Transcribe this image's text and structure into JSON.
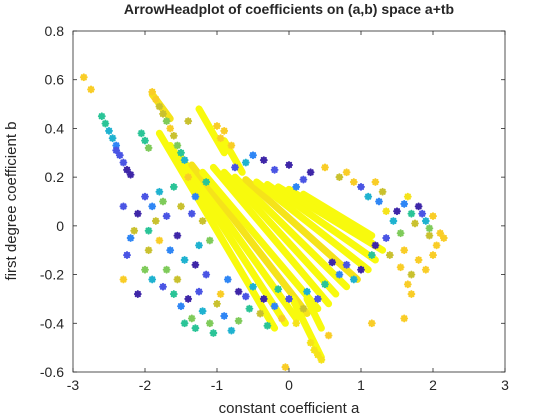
{
  "chart_data": {
    "type": "scatter",
    "title": "ArrowHeadplot of coefficients on (a,b) space a+tb",
    "xlabel": "constant coefficient a",
    "ylabel": "first degree coefficient b",
    "xlim": [
      -3,
      3
    ],
    "ylim": [
      -0.6,
      0.8
    ],
    "xticks": [
      -3,
      -2,
      -1,
      0,
      1,
      2,
      3
    ],
    "yticks": [
      -0.6,
      -0.4,
      -0.2,
      0,
      0.2,
      0.4,
      0.6,
      0.8
    ],
    "xtick_labels": [
      "-3",
      "-2",
      "-1",
      "0",
      "1",
      "2",
      "3"
    ],
    "ytick_labels": [
      "-0.6",
      "-0.4",
      "-0.2",
      "0",
      "0.2",
      "0.4",
      "0.6",
      "0.8"
    ],
    "grid": false,
    "marker": "star",
    "colormap": [
      "#3e26a8",
      "#4a55e4",
      "#2f86f5",
      "#1fb2d0",
      "#2ac497",
      "#7fcb5a",
      "#c9c12f",
      "#f9cd27",
      "#f5e31a",
      "#f8fa0d"
    ],
    "points": [
      {
        "x": -2.85,
        "y": 0.61,
        "c": 7
      },
      {
        "x": -2.75,
        "y": 0.56,
        "c": 7
      },
      {
        "x": -1.9,
        "y": 0.55,
        "c": 7
      },
      {
        "x": -1.85,
        "y": 0.52,
        "c": 7
      },
      {
        "x": -1.8,
        "y": 0.49,
        "c": 6
      },
      {
        "x": -1.75,
        "y": 0.46,
        "c": 6
      },
      {
        "x": -1.7,
        "y": 0.43,
        "c": 5
      },
      {
        "x": -2.6,
        "y": 0.45,
        "c": 4
      },
      {
        "x": -2.55,
        "y": 0.42,
        "c": 4
      },
      {
        "x": -2.5,
        "y": 0.39,
        "c": 3
      },
      {
        "x": -2.45,
        "y": 0.36,
        "c": 3
      },
      {
        "x": -2.4,
        "y": 0.33,
        "c": 2
      },
      {
        "x": -2.4,
        "y": 0.31,
        "c": 1
      },
      {
        "x": -2.35,
        "y": 0.29,
        "c": 1
      },
      {
        "x": -2.3,
        "y": 0.26,
        "c": 1
      },
      {
        "x": -2.25,
        "y": 0.23,
        "c": 0
      },
      {
        "x": -2.2,
        "y": 0.21,
        "c": 0
      },
      {
        "x": -2.05,
        "y": 0.38,
        "c": 4
      },
      {
        "x": -2.0,
        "y": 0.35,
        "c": 4
      },
      {
        "x": -1.95,
        "y": 0.32,
        "c": 5
      },
      {
        "x": -1.65,
        "y": 0.4,
        "c": 7
      },
      {
        "x": -1.6,
        "y": 0.37,
        "c": 6
      },
      {
        "x": -1.55,
        "y": 0.33,
        "c": 5
      },
      {
        "x": -1.5,
        "y": 0.3,
        "c": 4
      },
      {
        "x": -1.45,
        "y": 0.27,
        "c": 3
      },
      {
        "x": -1.4,
        "y": 0.43,
        "c": 6
      },
      {
        "x": -1.0,
        "y": 0.41,
        "c": 7
      },
      {
        "x": -0.95,
        "y": 0.36,
        "c": 7
      },
      {
        "x": -0.9,
        "y": 0.39,
        "c": 7
      },
      {
        "x": -0.8,
        "y": 0.33,
        "c": 7
      },
      {
        "x": -2.1,
        "y": 0.05,
        "c": 0
      },
      {
        "x": -2.0,
        "y": 0.12,
        "c": 1
      },
      {
        "x": -1.9,
        "y": 0.08,
        "c": 2
      },
      {
        "x": -1.8,
        "y": 0.14,
        "c": 3
      },
      {
        "x": -1.95,
        "y": -0.02,
        "c": 4
      },
      {
        "x": -1.85,
        "y": 0.02,
        "c": 6
      },
      {
        "x": -1.8,
        "y": -0.06,
        "c": 7
      },
      {
        "x": -1.75,
        "y": 0.1,
        "c": 5
      },
      {
        "x": -1.7,
        "y": 0.04,
        "c": 1
      },
      {
        "x": -1.65,
        "y": -0.1,
        "c": 2
      },
      {
        "x": -1.6,
        "y": 0.16,
        "c": 4
      },
      {
        "x": -1.55,
        "y": -0.04,
        "c": 0
      },
      {
        "x": -1.5,
        "y": 0.08,
        "c": 6
      },
      {
        "x": -1.45,
        "y": -0.14,
        "c": 3
      },
      {
        "x": -1.4,
        "y": 0.2,
        "c": 7
      },
      {
        "x": -2.2,
        "y": -0.05,
        "c": 2
      },
      {
        "x": -2.3,
        "y": 0.08,
        "c": 1
      },
      {
        "x": -2.15,
        "y": -0.02,
        "c": 6
      },
      {
        "x": -2.0,
        "y": -0.18,
        "c": 5
      },
      {
        "x": -1.9,
        "y": -0.22,
        "c": 3
      },
      {
        "x": -1.75,
        "y": -0.25,
        "c": 1
      },
      {
        "x": -1.6,
        "y": -0.28,
        "c": 4
      },
      {
        "x": -1.5,
        "y": -0.33,
        "c": 2
      },
      {
        "x": -1.4,
        "y": -0.3,
        "c": 0
      },
      {
        "x": -1.35,
        "y": -0.38,
        "c": 5
      },
      {
        "x": -1.3,
        "y": -0.42,
        "c": 4
      },
      {
        "x": -1.25,
        "y": -0.27,
        "c": 1
      },
      {
        "x": -1.2,
        "y": -0.35,
        "c": 3
      },
      {
        "x": -1.1,
        "y": -0.4,
        "c": 5
      },
      {
        "x": -1.05,
        "y": -0.44,
        "c": 4
      },
      {
        "x": -1.0,
        "y": -0.32,
        "c": 6
      },
      {
        "x": -0.9,
        "y": -0.37,
        "c": 2
      },
      {
        "x": -0.8,
        "y": -0.43,
        "c": 3
      },
      {
        "x": -0.7,
        "y": -0.39,
        "c": 5
      },
      {
        "x": -0.6,
        "y": -0.29,
        "c": 1
      },
      {
        "x": -0.55,
        "y": -0.34,
        "c": 4
      },
      {
        "x": -0.4,
        "y": -0.36,
        "c": 6
      },
      {
        "x": -0.3,
        "y": -0.41,
        "c": 4
      },
      {
        "x": -0.2,
        "y": -0.33,
        "c": 2
      },
      {
        "x": -0.1,
        "y": -0.38,
        "c": 7
      },
      {
        "x": 0.1,
        "y": -0.4,
        "c": 8
      },
      {
        "x": 0.2,
        "y": -0.34,
        "c": 6
      },
      {
        "x": -0.05,
        "y": -0.58,
        "c": 7
      },
      {
        "x": 0.3,
        "y": -0.48,
        "c": 8
      },
      {
        "x": 0.35,
        "y": -0.51,
        "c": 8
      },
      {
        "x": 0.4,
        "y": -0.53,
        "c": 8
      },
      {
        "x": 0.45,
        "y": -0.55,
        "c": 8
      },
      {
        "x": 0.55,
        "y": -0.45,
        "c": 7
      },
      {
        "x": 1.15,
        "y": -0.4,
        "c": 7
      },
      {
        "x": 1.6,
        "y": -0.38,
        "c": 7
      },
      {
        "x": 1.7,
        "y": -0.28,
        "c": 7
      },
      {
        "x": 1.55,
        "y": -0.17,
        "c": 7
      },
      {
        "x": 1.7,
        "y": -0.2,
        "c": 6
      },
      {
        "x": 1.65,
        "y": -0.24,
        "c": 7
      },
      {
        "x": 1.8,
        "y": -0.14,
        "c": 7
      },
      {
        "x": 1.9,
        "y": -0.18,
        "c": 7
      },
      {
        "x": 2.0,
        "y": -0.12,
        "c": 7
      },
      {
        "x": 2.05,
        "y": -0.08,
        "c": 7
      },
      {
        "x": 1.95,
        "y": -0.04,
        "c": 6
      },
      {
        "x": 2.1,
        "y": -0.03,
        "c": 7
      },
      {
        "x": 2.15,
        "y": -0.05,
        "c": 7
      },
      {
        "x": 1.85,
        "y": 0.05,
        "c": 1
      },
      {
        "x": 1.9,
        "y": 0.02,
        "c": 3
      },
      {
        "x": 1.8,
        "y": 0.08,
        "c": 0
      },
      {
        "x": 1.95,
        "y": -0.01,
        "c": 5
      },
      {
        "x": 2.0,
        "y": 0.04,
        "c": 7
      },
      {
        "x": 1.75,
        "y": 0.01,
        "c": 6
      },
      {
        "x": 1.7,
        "y": 0.05,
        "c": 4
      },
      {
        "x": 1.6,
        "y": 0.09,
        "c": 2
      },
      {
        "x": 1.5,
        "y": 0.06,
        "c": 0
      },
      {
        "x": 1.45,
        "y": 0.02,
        "c": 3
      },
      {
        "x": 1.55,
        "y": -0.03,
        "c": 5
      },
      {
        "x": 1.35,
        "y": -0.05,
        "c": 1
      },
      {
        "x": 1.25,
        "y": 0.1,
        "c": 2
      },
      {
        "x": 1.3,
        "y": 0.14,
        "c": 6
      },
      {
        "x": 1.2,
        "y": -0.08,
        "c": 0
      },
      {
        "x": 1.15,
        "y": -0.12,
        "c": 4
      },
      {
        "x": 1.1,
        "y": 0.12,
        "c": 3
      },
      {
        "x": 1.0,
        "y": 0.16,
        "c": 1
      },
      {
        "x": 0.9,
        "y": 0.18,
        "c": 7
      },
      {
        "x": 0.7,
        "y": 0.2,
        "c": 6
      },
      {
        "x": 0.8,
        "y": 0.22,
        "c": 7
      },
      {
        "x": 1.2,
        "y": 0.18,
        "c": 7
      },
      {
        "x": 0.5,
        "y": 0.24,
        "c": 7
      },
      {
        "x": 0.3,
        "y": 0.22,
        "c": 0
      },
      {
        "x": 0.2,
        "y": 0.19,
        "c": 1
      },
      {
        "x": 0.1,
        "y": 0.16,
        "c": 2
      },
      {
        "x": 0.0,
        "y": 0.25,
        "c": 0
      },
      {
        "x": -0.2,
        "y": 0.23,
        "c": 1
      },
      {
        "x": -0.35,
        "y": 0.27,
        "c": 0
      },
      {
        "x": -0.5,
        "y": 0.29,
        "c": 2
      },
      {
        "x": -0.6,
        "y": 0.26,
        "c": 3
      },
      {
        "x": -0.75,
        "y": 0.24,
        "c": 1
      },
      {
        "x": 0.6,
        "y": -0.15,
        "c": 0
      },
      {
        "x": 0.7,
        "y": -0.2,
        "c": 2
      },
      {
        "x": 0.8,
        "y": -0.16,
        "c": 1
      },
      {
        "x": 0.9,
        "y": -0.22,
        "c": 3
      },
      {
        "x": 1.0,
        "y": -0.18,
        "c": 0
      },
      {
        "x": 0.5,
        "y": -0.24,
        "c": 4
      },
      {
        "x": 0.4,
        "y": -0.3,
        "c": 1
      },
      {
        "x": 0.25,
        "y": -0.27,
        "c": 3
      },
      {
        "x": 0.0,
        "y": -0.3,
        "c": 1
      },
      {
        "x": -0.15,
        "y": -0.26,
        "c": 4
      },
      {
        "x": -0.35,
        "y": -0.3,
        "c": 0
      },
      {
        "x": -0.5,
        "y": -0.25,
        "c": 3
      },
      {
        "x": -0.7,
        "y": -0.27,
        "c": 0
      },
      {
        "x": -0.85,
        "y": -0.22,
        "c": 2
      },
      {
        "x": -1.15,
        "y": -0.2,
        "c": 1
      },
      {
        "x": -1.3,
        "y": -0.16,
        "c": 0
      },
      {
        "x": -1.2,
        "y": 0.02,
        "c": 6
      },
      {
        "x": -1.3,
        "y": 0.12,
        "c": 2
      },
      {
        "x": -1.15,
        "y": 0.18,
        "c": 4
      },
      {
        "x": -1.1,
        "y": -0.06,
        "c": 5
      },
      {
        "x": -1.25,
        "y": -0.08,
        "c": 3
      },
      {
        "x": -1.35,
        "y": 0.05,
        "c": 1
      },
      {
        "x": -2.25,
        "y": -0.12,
        "c": 1
      },
      {
        "x": -2.1,
        "y": -0.28,
        "c": 0
      },
      {
        "x": -1.95,
        "y": -0.1,
        "c": 6
      },
      {
        "x": -2.3,
        "y": -0.22,
        "c": 7
      },
      {
        "x": -1.7,
        "y": -0.18,
        "c": 5
      },
      {
        "x": -1.55,
        "y": -0.22,
        "c": 6
      },
      {
        "x": -1.45,
        "y": -0.4,
        "c": 4
      },
      {
        "x": -0.95,
        "y": -0.28,
        "c": 7
      },
      {
        "x": 1.4,
        "y": -0.12,
        "c": 6
      },
      {
        "x": 1.35,
        "y": 0.06,
        "c": 8
      },
      {
        "x": 1.65,
        "y": 0.12,
        "c": 8
      },
      {
        "x": 1.6,
        "y": -0.1,
        "c": 7
      }
    ],
    "bands": [
      {
        "x0": -1.8,
        "y0": 0.38,
        "x1": -0.2,
        "y1": -0.42,
        "c": 9
      },
      {
        "x0": -1.65,
        "y0": 0.33,
        "x1": -0.05,
        "y1": -0.4,
        "c": 9
      },
      {
        "x0": -1.5,
        "y0": 0.28,
        "x1": 0.1,
        "y1": -0.38,
        "c": 9
      },
      {
        "x0": -1.35,
        "y0": 0.25,
        "x1": 0.25,
        "y1": -0.36,
        "c": 8
      },
      {
        "x0": -1.2,
        "y0": 0.22,
        "x1": 0.4,
        "y1": -0.34,
        "c": 9
      },
      {
        "x0": -1.05,
        "y0": 0.24,
        "x1": 0.55,
        "y1": -0.32,
        "c": 9
      },
      {
        "x0": -0.9,
        "y0": 0.22,
        "x1": 0.65,
        "y1": -0.28,
        "c": 9
      },
      {
        "x0": -0.75,
        "y0": 0.2,
        "x1": 0.8,
        "y1": -0.25,
        "c": 9
      },
      {
        "x0": -0.6,
        "y0": 0.19,
        "x1": 0.95,
        "y1": -0.22,
        "c": 8
      },
      {
        "x0": -0.45,
        "y0": 0.18,
        "x1": 1.1,
        "y1": -0.18,
        "c": 9
      },
      {
        "x0": -0.3,
        "y0": 0.17,
        "x1": 1.2,
        "y1": -0.14,
        "c": 9
      },
      {
        "x0": -0.15,
        "y0": 0.16,
        "x1": 1.3,
        "y1": -0.1,
        "c": 9
      },
      {
        "x0": 0.0,
        "y0": 0.15,
        "x1": 1.15,
        "y1": -0.07,
        "c": 9
      },
      {
        "x0": 0.2,
        "y0": 0.13,
        "x1": 1.15,
        "y1": -0.04,
        "c": 9
      },
      {
        "x0": -1.9,
        "y0": 0.54,
        "x1": -1.65,
        "y1": 0.44,
        "c": 8
      },
      {
        "x0": -1.25,
        "y0": 0.48,
        "x1": -0.9,
        "y1": 0.3,
        "c": 9
      },
      {
        "x0": -0.9,
        "y0": 0.35,
        "x1": -0.65,
        "y1": 0.22,
        "c": 9
      },
      {
        "x0": 0.05,
        "y0": -0.3,
        "x1": 0.45,
        "y1": -0.54,
        "c": 9
      },
      {
        "x0": 0.25,
        "y0": -0.3,
        "x1": 0.45,
        "y1": -0.42,
        "c": 9
      }
    ]
  }
}
